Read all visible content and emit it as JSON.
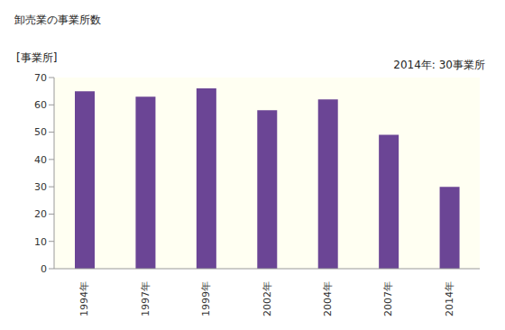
{
  "chart_data": {
    "type": "bar",
    "title": "卸売業の事業所数",
    "y_label": "[事業所]",
    "annotation": "2014年: 30事業所",
    "categories": [
      "1994年",
      "1997年",
      "1999年",
      "2002年",
      "2004年",
      "2007年",
      "2014年"
    ],
    "values": [
      65,
      63,
      66,
      58,
      62,
      49,
      30
    ],
    "color": "#6b4595",
    "ylim": [
      0,
      70
    ],
    "yticks": [
      0,
      10,
      20,
      30,
      40,
      50,
      60,
      70
    ],
    "grid": false
  }
}
